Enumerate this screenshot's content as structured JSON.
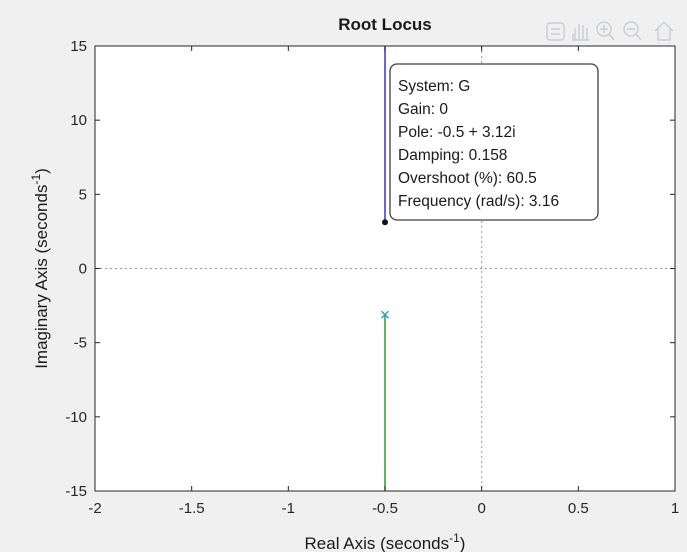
{
  "chart_data": {
    "type": "line",
    "title": "Root Locus",
    "xlabel": "Real Axis (seconds",
    "ylabel": "Imaginary Axis (seconds",
    "axis_unit_exponent": "-1",
    "xlim": [
      -2,
      1
    ],
    "ylim": [
      -15,
      15
    ],
    "xticks": [
      -2,
      -1.5,
      -1,
      -0.5,
      0,
      0.5,
      1
    ],
    "xtick_labels": [
      "-2",
      "-1.5",
      "-1",
      "-0.5",
      "0",
      "0.5",
      "1"
    ],
    "yticks": [
      -15,
      -10,
      -5,
      0,
      5,
      10,
      15
    ],
    "ytick_labels": [
      "-15",
      "-10",
      "-5",
      "0",
      "5",
      "10",
      "15"
    ],
    "grid": false,
    "zero_lines": true,
    "series": [
      {
        "color": "#4040d8",
        "x": [
          -0.5,
          -0.5
        ],
        "y": [
          3.12,
          15
        ]
      },
      {
        "color": "#3ca23c",
        "x": [
          -0.5,
          -0.5
        ],
        "y": [
          -3.12,
          -15
        ]
      }
    ],
    "poles": [
      {
        "x": -0.5,
        "y": -3.12,
        "marker": "x",
        "color": "#2a9ad8"
      }
    ],
    "datatip": {
      "x": -0.5,
      "y": 3.12,
      "lines": [
        "System: G",
        "Gain: 0",
        "Pole: -0.5 + 3.12i",
        "Damping: 0.158",
        "Overshoot (%): 60.5",
        "Frequency (rad/s): 3.16"
      ]
    }
  },
  "toolbar": {
    "icons": [
      "brush-icon",
      "pan-hand-icon",
      "zoom-in-icon",
      "zoom-out-icon",
      "home-icon"
    ]
  }
}
